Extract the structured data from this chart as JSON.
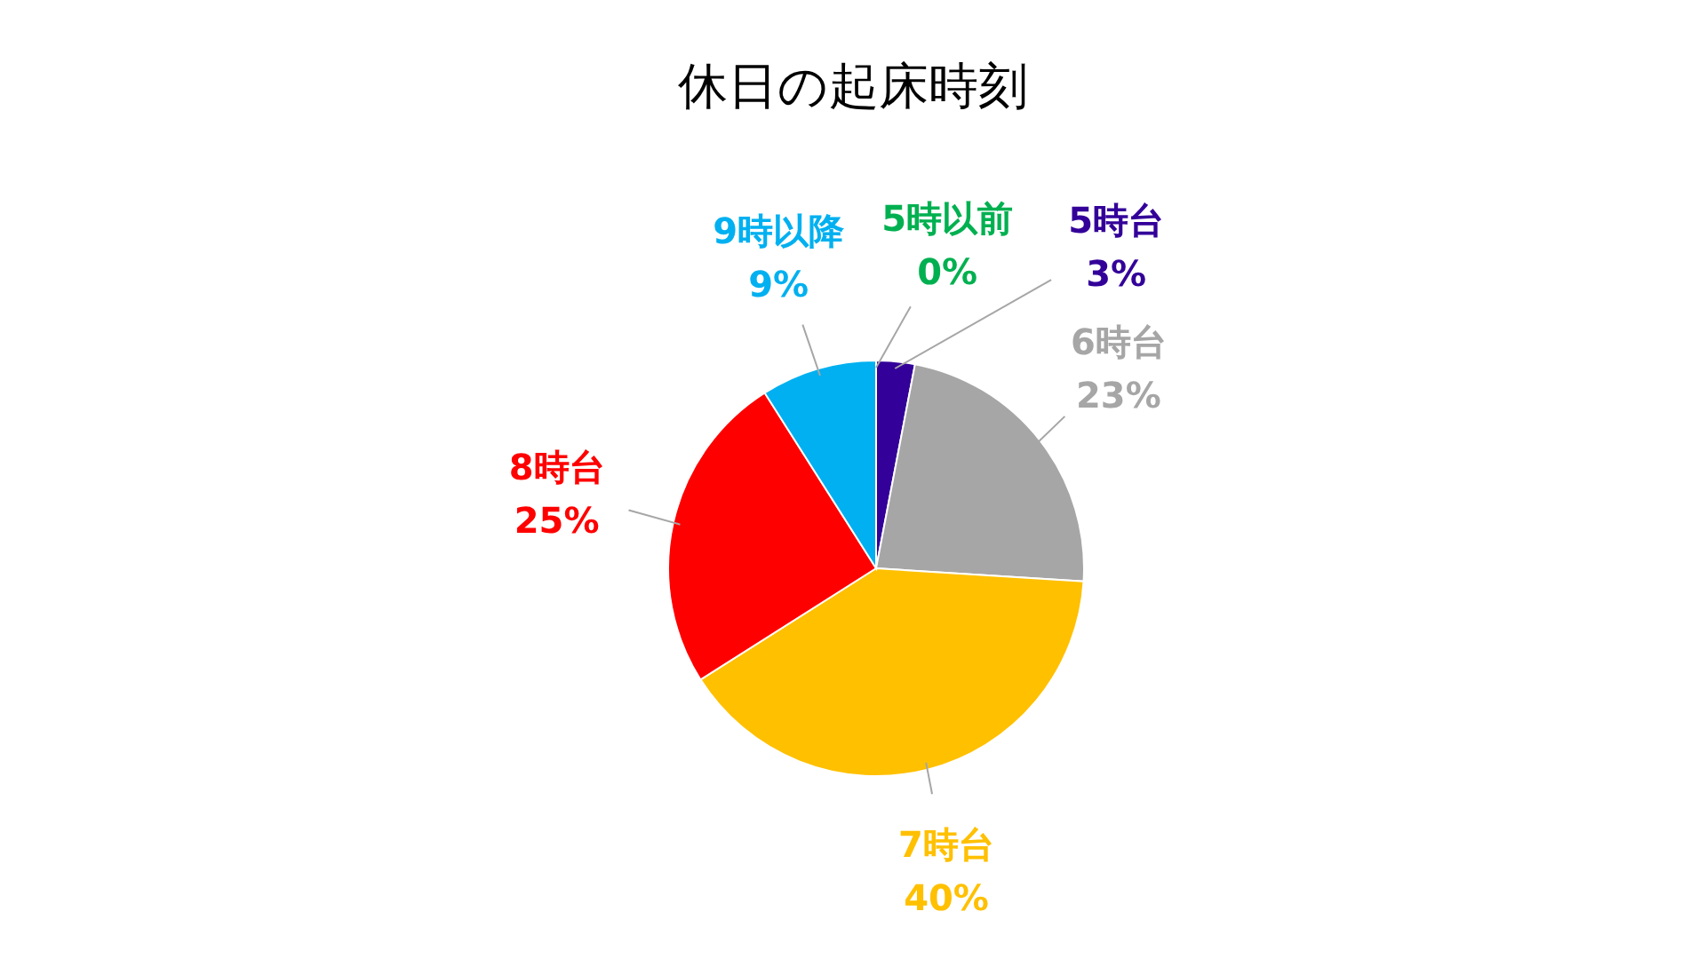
{
  "chart_data": {
    "type": "pie",
    "title": "休日の起床時刻",
    "categories": [
      "5時以前",
      "5時台",
      "6時台",
      "7時台",
      "8時台",
      "9時以降"
    ],
    "values": [
      0,
      3,
      23,
      40,
      25,
      9
    ],
    "colors": [
      "#00b050",
      "#330099",
      "#a6a6a6",
      "#ffc000",
      "#ff0000",
      "#00b0f0"
    ],
    "value_labels": [
      "0%",
      "3%",
      "23%",
      "40%",
      "25%",
      "9%"
    ]
  }
}
